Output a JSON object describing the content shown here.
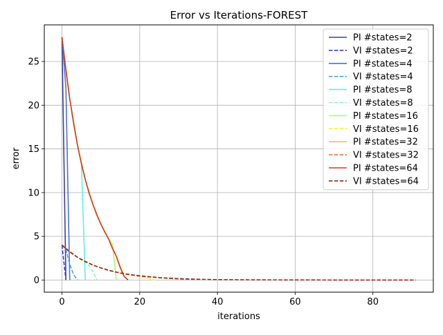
{
  "chart_data": {
    "type": "line",
    "title": "Error vs Iterations-FOREST",
    "xlabel": "iterations",
    "ylabel": "error",
    "xlim": [
      -4.55,
      95.55
    ],
    "ylim": [
      -1.39,
      29.19
    ],
    "xticks": [
      0,
      20,
      40,
      60,
      80
    ],
    "yticks": [
      0,
      5,
      10,
      15,
      20,
      25
    ],
    "grid": true,
    "legend_position": "top-right",
    "series": [
      {
        "name": "PI #states=2",
        "style": "solid",
        "color": "#3a3fa3",
        "x": [
          0,
          1
        ],
        "y": [
          27.8,
          0.0
        ]
      },
      {
        "name": "VI #states=2",
        "style": "dashed",
        "color": "#3c3cd8",
        "x": [
          0,
          0.5,
          1
        ],
        "y": [
          4.0,
          2.0,
          0.0
        ]
      },
      {
        "name": "PI #states=4",
        "style": "solid",
        "color": "#4a72dc",
        "x": [
          0,
          1,
          2
        ],
        "y": [
          27.8,
          22.0,
          0.0
        ]
      },
      {
        "name": "VI #states=4",
        "style": "dashed",
        "color": "#3fa4ee",
        "x": [
          0,
          1,
          2,
          3,
          4
        ],
        "y": [
          4.0,
          3.5,
          1.8,
          0.6,
          0.0
        ]
      },
      {
        "name": "PI #states=8",
        "style": "solid",
        "color": "#5cf0e6",
        "x": [
          0,
          1,
          2,
          3,
          4,
          5,
          6
        ],
        "y": [
          27.8,
          24.0,
          20.7,
          17.9,
          15.4,
          13.3,
          0.0
        ]
      },
      {
        "name": "VI #states=8",
        "style": "dashed",
        "color": "#7affc8",
        "x": [
          0,
          2,
          4,
          5,
          6,
          7,
          8,
          9
        ],
        "y": [
          4.0,
          3.2,
          2.6,
          2.3,
          2.1,
          1.6,
          0.9,
          0.0
        ]
      },
      {
        "name": "PI #states=16",
        "style": "solid",
        "color": "#a8ff70",
        "x": [
          0,
          2,
          4,
          6,
          8,
          10,
          12,
          13,
          14
        ],
        "y": [
          27.8,
          20.7,
          15.4,
          11.5,
          8.6,
          6.4,
          4.7,
          4.1,
          0.0
        ]
      },
      {
        "name": "VI #states=16",
        "style": "dashed",
        "color": "#eef640",
        "x": [
          0,
          4,
          8,
          12,
          16,
          20,
          22,
          24
        ],
        "y": [
          4.0,
          2.6,
          1.7,
          1.1,
          0.7,
          0.4,
          0.2,
          0.0
        ]
      },
      {
        "name": "PI #states=32",
        "style": "solid",
        "color": "#fdbd3a",
        "x": [
          0,
          2,
          4,
          6,
          8,
          10,
          12,
          14,
          16,
          17
        ],
        "y": [
          27.8,
          20.7,
          15.4,
          11.5,
          8.6,
          6.4,
          4.7,
          2.7,
          0.4,
          0.0
        ]
      },
      {
        "name": "VI #states=32",
        "style": "dashed",
        "color": "#f1713a",
        "x": [
          0,
          4,
          8,
          12,
          16,
          20,
          25,
          30,
          35
        ],
        "y": [
          4.0,
          2.6,
          1.7,
          1.1,
          0.7,
          0.45,
          0.25,
          0.12,
          0.05
        ]
      },
      {
        "name": "PI #states=64",
        "style": "solid",
        "color": "#d53a1c",
        "x": [
          0,
          1,
          2,
          3,
          4,
          5,
          6,
          7,
          8,
          9,
          10,
          11,
          12,
          13,
          14,
          15,
          16,
          17
        ],
        "y": [
          27.8,
          24.0,
          20.7,
          17.9,
          15.4,
          13.3,
          11.5,
          9.9,
          8.6,
          7.4,
          6.4,
          5.5,
          4.7,
          3.6,
          2.7,
          1.4,
          0.4,
          0.0
        ]
      },
      {
        "name": "VI #states=64",
        "style": "dashed",
        "color": "#922a1a",
        "x": [
          0,
          2,
          4,
          6,
          8,
          10,
          12,
          14,
          16,
          18,
          20,
          25,
          30,
          35,
          40,
          45,
          50,
          60,
          70,
          80,
          91
        ],
        "y": [
          4.0,
          3.2,
          2.6,
          2.1,
          1.7,
          1.38,
          1.12,
          0.9,
          0.73,
          0.59,
          0.48,
          0.28,
          0.16,
          0.09,
          0.05,
          0.03,
          0.02,
          0.01,
          0.0,
          0.0,
          0.0
        ]
      }
    ]
  }
}
